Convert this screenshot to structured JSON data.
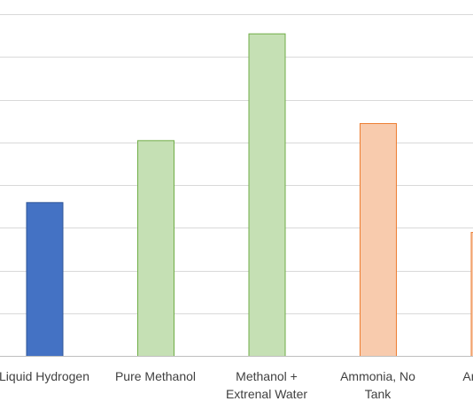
{
  "chart_data": {
    "type": "bar",
    "title": "",
    "xlabel": "",
    "ylabel": "",
    "ylim": [
      0,
      8
    ],
    "grid": true,
    "legend": "none",
    "categories": [
      [
        "Liquid Hydrogen"
      ],
      [
        "Pure Methanol"
      ],
      [
        "Methanol +",
        "Extrenal Water"
      ],
      [
        "Ammonia, No",
        "Tank"
      ],
      [
        "Ammonia"
      ]
    ],
    "values": [
      3.6,
      5.05,
      7.55,
      5.45,
      2.9
    ],
    "colors": [
      {
        "fill": "#4472c4",
        "stroke": "#2f5597"
      },
      {
        "fill": "#c5e0b4",
        "stroke": "#70ad47"
      },
      {
        "fill": "#c5e0b4",
        "stroke": "#70ad47"
      },
      {
        "fill": "#f8cbad",
        "stroke": "#ed7d31"
      },
      {
        "fill": "#f8cbad",
        "stroke": "#ed7d31"
      }
    ]
  }
}
